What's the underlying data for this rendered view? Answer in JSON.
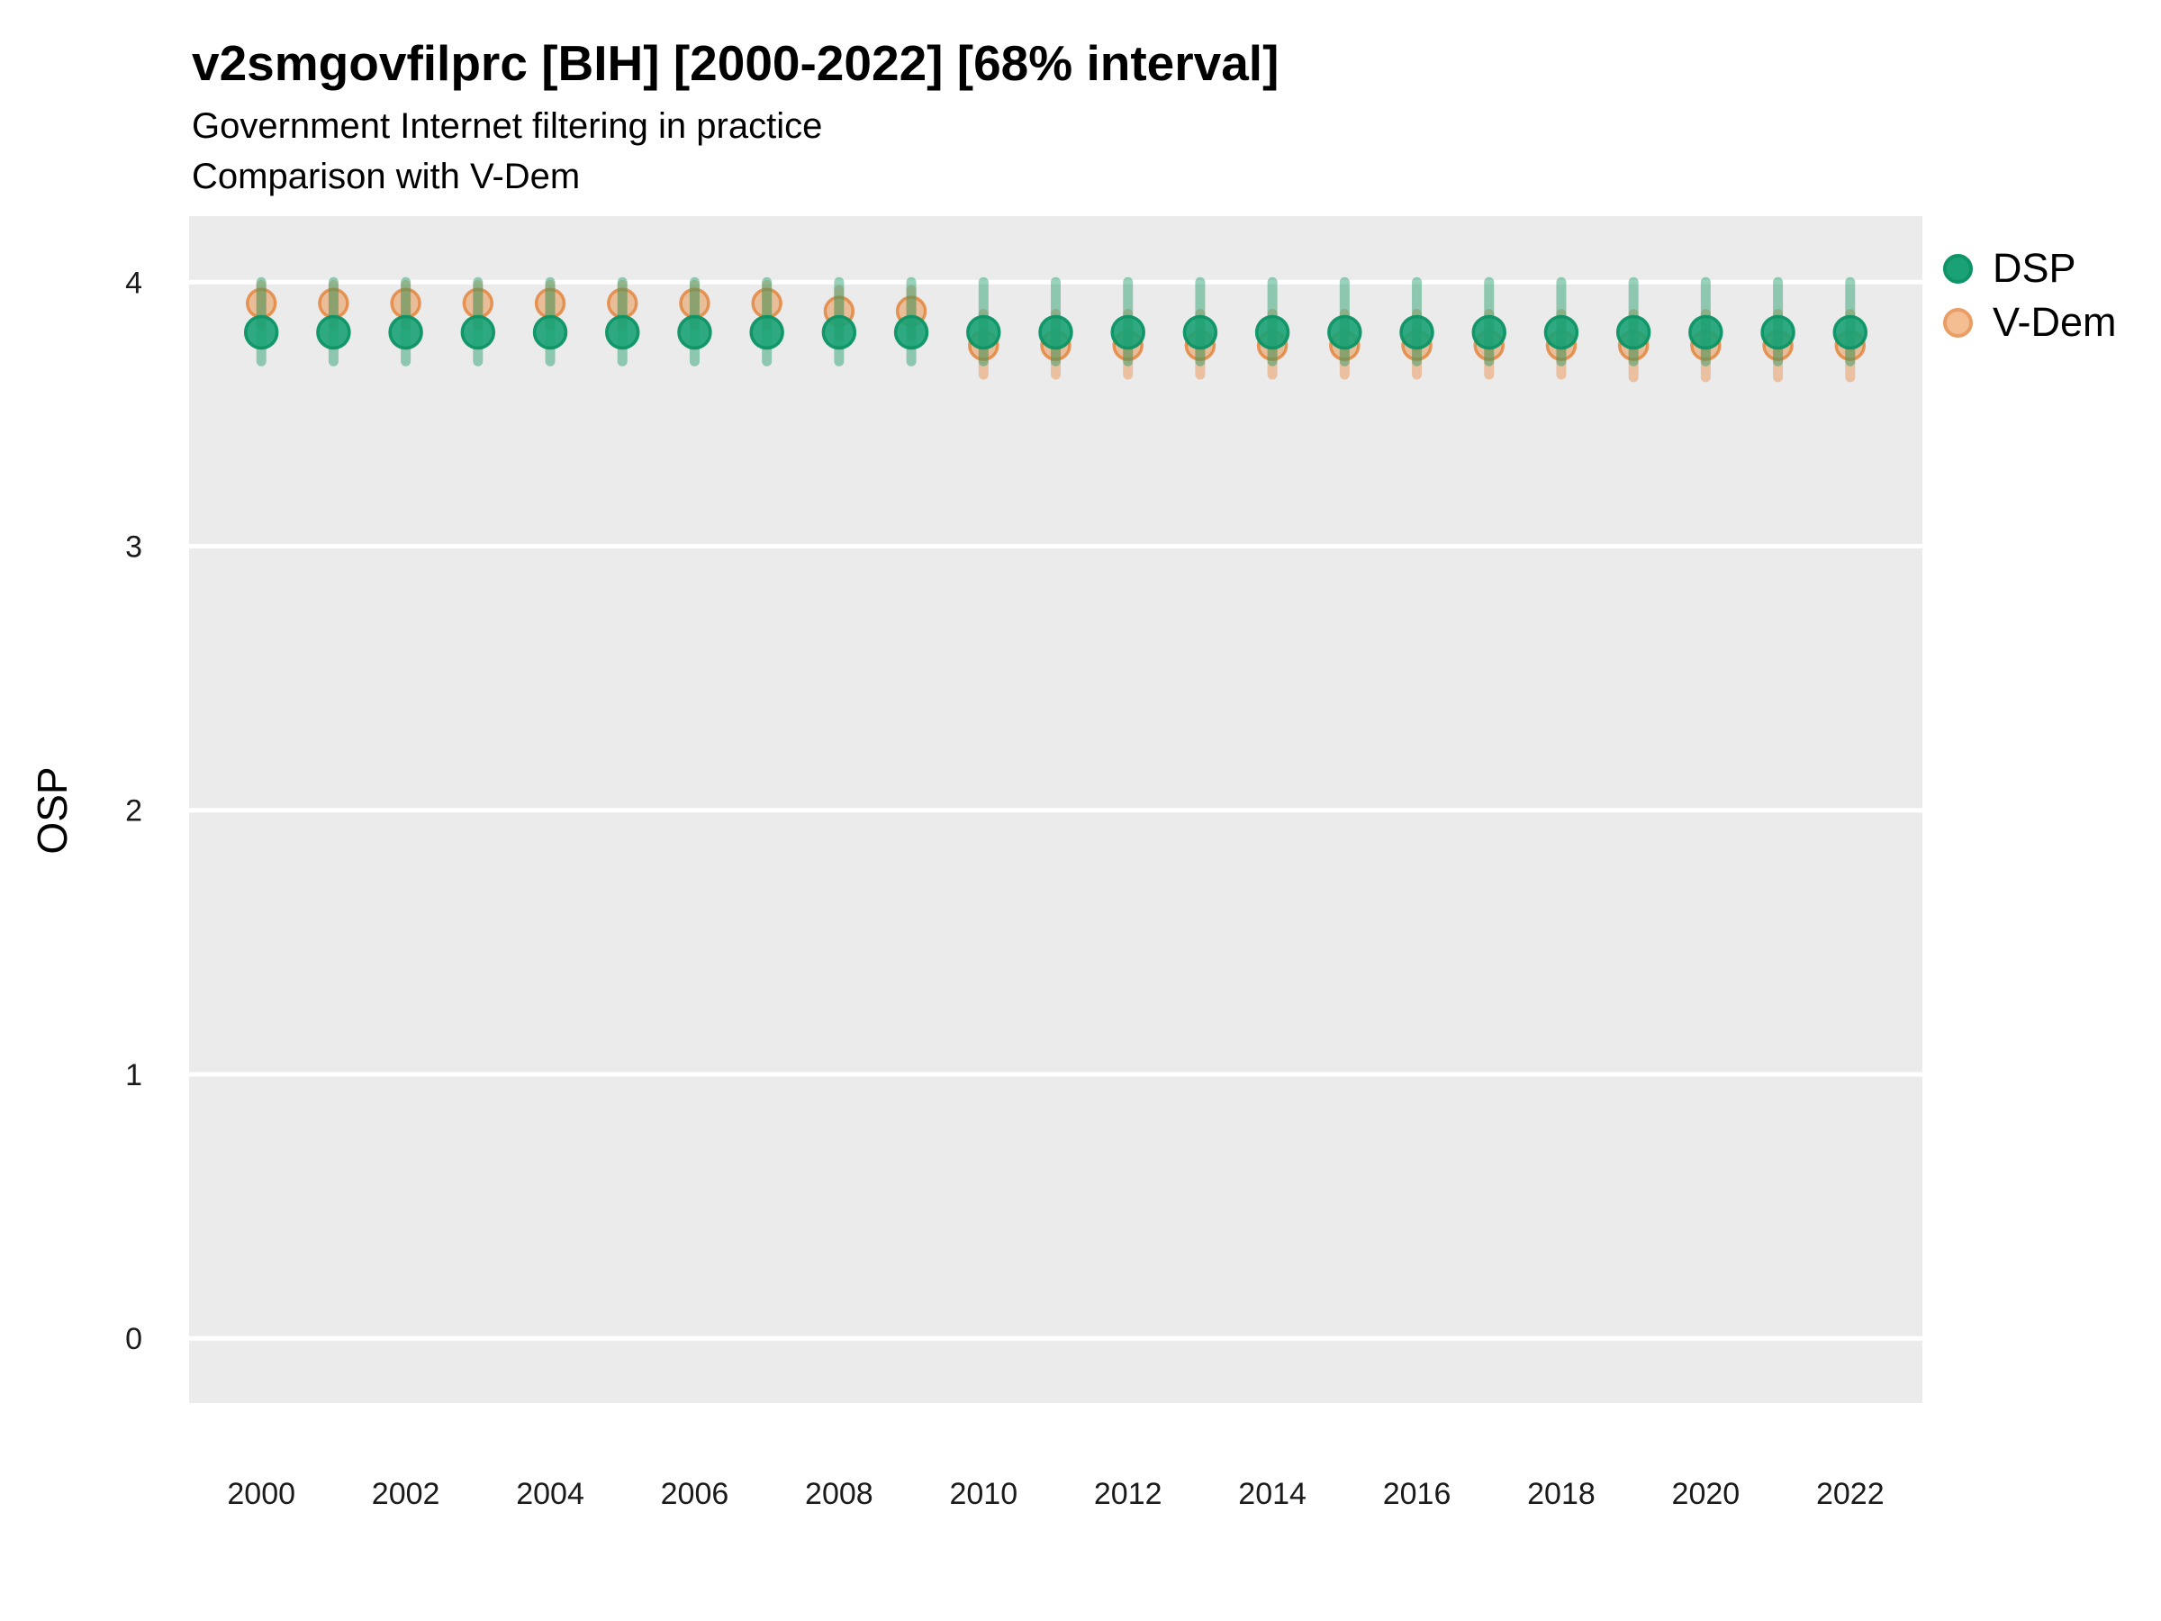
{
  "header": {
    "title": "v2smgovfilprc [BIH] [2000-2022] [68% interval]",
    "subtitle_line1": "Government Internet filtering in practice",
    "subtitle_line2": "Comparison with V-Dem"
  },
  "y_axis_title": "OSP",
  "legend": {
    "position": "right",
    "items": [
      {
        "label": "DSP",
        "swatch_fill": "#1AA276",
        "swatch_border": "#0F9467"
      },
      {
        "label": "V-Dem",
        "swatch_fill": "#F4BD92",
        "swatch_border": "#EA9E66"
      }
    ]
  },
  "colors": {
    "panel_background": "#EBEBEB",
    "gridline": "#FFFFFF",
    "axis_text": "#1A1A1A",
    "dsp_fill": "rgba(26,162,118,0.9)",
    "dsp_stroke": "rgba(13,148,101,0.95)",
    "dsp_interval": "rgba(26,155,105,0.45)",
    "vdem_fill": "rgba(231,143,69,0.5)",
    "vdem_stroke": "rgba(226,124,45,0.75)",
    "vdem_interval": "rgba(235,150,85,0.5)"
  },
  "chart_data": {
    "type": "scatter",
    "title": "v2smgovfilprc [BIH] [2000-2022] [68% interval]",
    "subtitle": "Government Internet filtering in practice — Comparison with V-Dem",
    "interval": "68%",
    "xlabel": "",
    "ylabel": "OSP",
    "grid": "horizontal-major-only",
    "legend_position": "right",
    "x": [
      2000,
      2001,
      2002,
      2003,
      2004,
      2005,
      2006,
      2007,
      2008,
      2009,
      2010,
      2011,
      2012,
      2013,
      2014,
      2015,
      2016,
      2017,
      2018,
      2019,
      2020,
      2021,
      2022
    ],
    "x_ticks": [
      2000,
      2002,
      2004,
      2006,
      2008,
      2010,
      2012,
      2014,
      2016,
      2018,
      2020,
      2022
    ],
    "y_ticks": [
      0,
      1,
      2,
      3,
      4
    ],
    "xlim": [
      1999,
      2023
    ],
    "ylim": [
      -0.245,
      4.25
    ],
    "series": [
      {
        "name": "DSP",
        "color": "#1AA276",
        "est": [
          3.81,
          3.81,
          3.81,
          3.81,
          3.81,
          3.81,
          3.81,
          3.81,
          3.81,
          3.81,
          3.81,
          3.81,
          3.81,
          3.81,
          3.81,
          3.81,
          3.81,
          3.81,
          3.81,
          3.81,
          3.81,
          3.81,
          3.81
        ],
        "lo": [
          3.7,
          3.7,
          3.7,
          3.7,
          3.7,
          3.7,
          3.7,
          3.7,
          3.7,
          3.7,
          3.7,
          3.7,
          3.7,
          3.7,
          3.7,
          3.7,
          3.7,
          3.7,
          3.7,
          3.7,
          3.7,
          3.7,
          3.7
        ],
        "hi": [
          4.0,
          4.0,
          4.0,
          4.0,
          4.0,
          4.0,
          4.0,
          4.0,
          4.0,
          4.0,
          4.0,
          4.0,
          4.0,
          4.0,
          4.0,
          4.0,
          4.0,
          4.0,
          4.0,
          4.0,
          4.0,
          4.0,
          4.0
        ]
      },
      {
        "name": "V-Dem",
        "color": "#E98E4E",
        "est": [
          3.92,
          3.92,
          3.92,
          3.92,
          3.92,
          3.92,
          3.92,
          3.92,
          3.89,
          3.89,
          3.76,
          3.76,
          3.76,
          3.76,
          3.76,
          3.76,
          3.76,
          3.76,
          3.76,
          3.76,
          3.76,
          3.76,
          3.76
        ],
        "lo": [
          3.84,
          3.84,
          3.84,
          3.84,
          3.84,
          3.84,
          3.84,
          3.84,
          3.8,
          3.8,
          3.65,
          3.65,
          3.65,
          3.65,
          3.65,
          3.65,
          3.65,
          3.65,
          3.65,
          3.64,
          3.64,
          3.64,
          3.64
        ],
        "hi": [
          3.99,
          3.99,
          3.99,
          3.99,
          3.99,
          3.99,
          3.99,
          3.99,
          3.97,
          3.97,
          3.88,
          3.88,
          3.88,
          3.88,
          3.88,
          3.88,
          3.88,
          3.88,
          3.88,
          3.88,
          3.88,
          3.88,
          3.88
        ]
      }
    ]
  }
}
